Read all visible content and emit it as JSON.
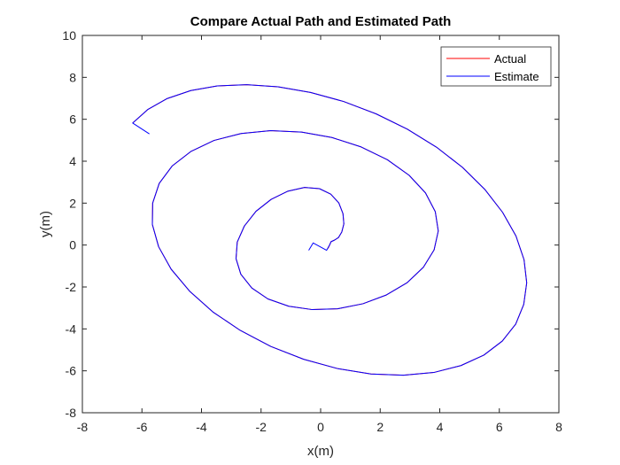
{
  "chart_data": {
    "type": "line",
    "title": "Compare Actual Path and Estimated Path",
    "xlabel": "x(m)",
    "ylabel": "y(m)",
    "xlim": [
      -8,
      8
    ],
    "ylim": [
      -8,
      10
    ],
    "xticks": [
      -8,
      -6,
      -4,
      -2,
      0,
      2,
      4,
      6,
      8
    ],
    "yticks": [
      -8,
      -6,
      -4,
      -2,
      0,
      2,
      4,
      6,
      8,
      10
    ],
    "grid": false,
    "legend_position": "top-right",
    "series": [
      {
        "name": "Actual",
        "color": "#ff0000",
        "x": [
          0.25,
          0.35,
          0.47,
          0.6,
          0.71,
          0.78,
          0.75,
          0.61,
          0.34,
          -0.04,
          -0.54,
          -1.1,
          -1.66,
          -2.17,
          -2.56,
          -2.8,
          -2.84,
          -2.68,
          -2.31,
          -1.77,
          -1.07,
          -0.28,
          0.57,
          1.42,
          2.21,
          2.91,
          3.45,
          3.81,
          3.95,
          3.85,
          3.52,
          2.97,
          2.24,
          1.36,
          0.38,
          -0.64,
          -1.68,
          -2.67,
          -3.58,
          -4.36,
          -4.98,
          -5.42,
          -5.64,
          -5.65,
          -5.44,
          -5.02,
          -4.4,
          -3.62,
          -2.7,
          -1.67,
          -0.57,
          0.56,
          1.69,
          2.78,
          3.8,
          4.71,
          5.48,
          6.1,
          6.55,
          6.82,
          6.92,
          6.83,
          6.56,
          6.11,
          5.51,
          4.76,
          3.89,
          2.91,
          1.86,
          0.77,
          -0.34,
          -1.43,
          -2.48,
          -3.47,
          -4.36,
          -5.15,
          -5.8,
          -6.31
        ],
        "y": [
          -0.16,
          0.16,
          0.24,
          0.36,
          0.62,
          1.01,
          1.5,
          2.01,
          2.43,
          2.69,
          2.75,
          2.57,
          2.18,
          1.61,
          0.91,
          0.14,
          -0.65,
          -1.39,
          -2.05,
          -2.57,
          -2.92,
          -3.08,
          -3.04,
          -2.8,
          -2.38,
          -1.79,
          -1.06,
          -0.23,
          0.67,
          1.59,
          2.49,
          3.33,
          4.07,
          4.68,
          5.13,
          5.39,
          5.46,
          5.32,
          4.99,
          4.46,
          3.78,
          2.94,
          2.0,
          0.98,
          -0.08,
          -1.15,
          -2.2,
          -3.19,
          -4.07,
          -4.84,
          -5.45,
          -5.89,
          -6.15,
          -6.21,
          -6.08,
          -5.75,
          -5.25,
          -4.58,
          -3.77,
          -2.83,
          -1.8,
          -0.7,
          0.43,
          1.56,
          2.66,
          3.71,
          4.67,
          5.53,
          6.26,
          6.85,
          7.28,
          7.55,
          7.65,
          7.59,
          7.37,
          6.99,
          6.47,
          5.82
        ]
      },
      {
        "name": "Estimate",
        "color": "#0000ff",
        "x": [
          -0.4,
          -0.25,
          0.2,
          0.3,
          0.35,
          0.47,
          0.6,
          0.71,
          0.78,
          0.75,
          0.61,
          0.34,
          -0.04,
          -0.54,
          -1.1,
          -1.66,
          -2.17,
          -2.56,
          -2.8,
          -2.84,
          -2.68,
          -2.31,
          -1.77,
          -1.07,
          -0.28,
          0.57,
          1.42,
          2.21,
          2.91,
          3.45,
          3.81,
          3.95,
          3.85,
          3.52,
          2.97,
          2.24,
          1.36,
          0.38,
          -0.64,
          -1.68,
          -2.67,
          -3.58,
          -4.36,
          -4.98,
          -5.42,
          -5.64,
          -5.65,
          -5.44,
          -5.02,
          -4.4,
          -3.62,
          -2.7,
          -1.67,
          -0.57,
          0.56,
          1.69,
          2.78,
          3.8,
          4.71,
          5.48,
          6.1,
          6.55,
          6.82,
          6.92,
          6.83,
          6.56,
          6.11,
          5.51,
          4.76,
          3.89,
          2.91,
          1.86,
          0.77,
          -0.34,
          -1.43,
          -2.48,
          -3.47,
          -4.36,
          -5.15,
          -5.8,
          -6.31,
          -5.75
        ],
        "y": [
          -0.25,
          0.1,
          -0.25,
          0.0,
          0.16,
          0.24,
          0.36,
          0.62,
          1.01,
          1.5,
          2.01,
          2.43,
          2.69,
          2.75,
          2.57,
          2.18,
          1.61,
          0.91,
          0.14,
          -0.65,
          -1.39,
          -2.05,
          -2.57,
          -2.92,
          -3.08,
          -3.04,
          -2.8,
          -2.38,
          -1.79,
          -1.06,
          -0.23,
          0.67,
          1.59,
          2.49,
          3.33,
          4.07,
          4.68,
          5.13,
          5.39,
          5.46,
          5.32,
          4.99,
          4.46,
          3.78,
          2.94,
          2.0,
          0.98,
          -0.08,
          -1.15,
          -2.2,
          -3.19,
          -4.07,
          -4.84,
          -5.45,
          -5.89,
          -6.15,
          -6.21,
          -6.08,
          -5.75,
          -5.25,
          -4.58,
          -3.77,
          -2.83,
          -1.8,
          -0.7,
          0.43,
          1.56,
          2.66,
          3.71,
          4.67,
          5.53,
          6.26,
          6.85,
          7.28,
          7.55,
          7.65,
          7.59,
          7.37,
          6.99,
          6.47,
          5.82,
          5.3
        ]
      }
    ]
  }
}
